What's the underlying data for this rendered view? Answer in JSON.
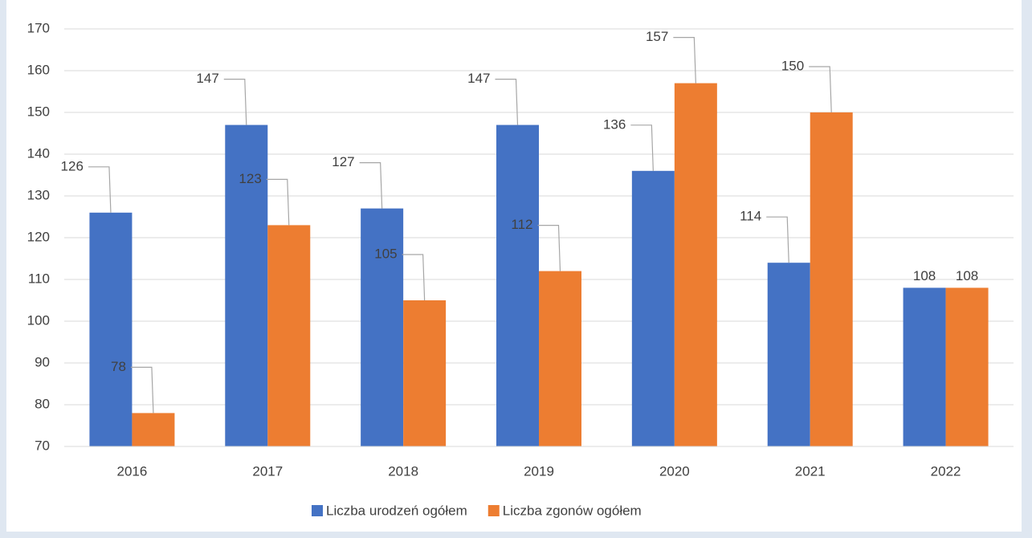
{
  "chart_data": {
    "type": "bar",
    "categories": [
      "2016",
      "2017",
      "2018",
      "2019",
      "2020",
      "2021",
      "2022"
    ],
    "series": [
      {
        "name": "Liczba urodzeń ogółem",
        "color": "#4472c4",
        "values": [
          126,
          147,
          127,
          147,
          136,
          114,
          108
        ]
      },
      {
        "name": "Liczba zgonów ogółem",
        "color": "#ed7d31",
        "values": [
          78,
          123,
          105,
          112,
          157,
          150,
          108
        ]
      }
    ],
    "ylim": [
      70,
      170
    ],
    "yticks": [
      70,
      80,
      90,
      100,
      110,
      120,
      130,
      140,
      150,
      160,
      170
    ],
    "grid": true,
    "legend": "bottom"
  }
}
